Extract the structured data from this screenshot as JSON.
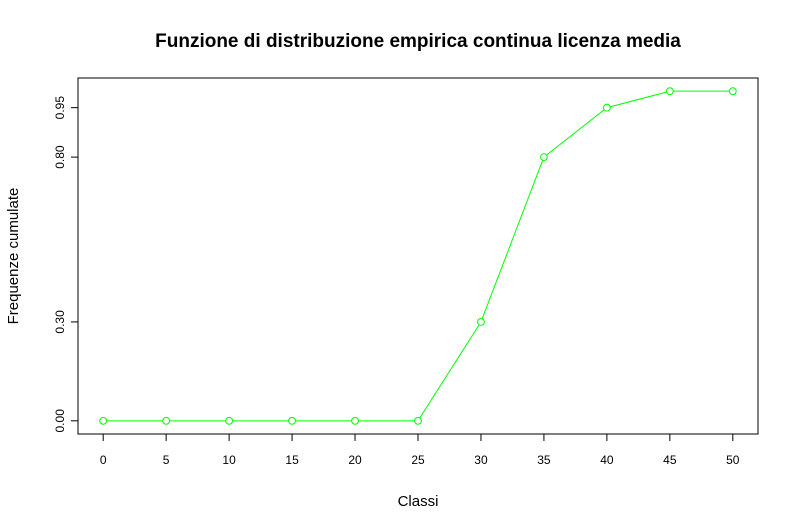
{
  "chart_data": {
    "type": "line",
    "title": "Funzione di distribuzione empirica continua licenza media",
    "xlabel": "Classi",
    "ylabel": "Frequenze cumulate",
    "x": [
      0,
      5,
      10,
      15,
      20,
      25,
      30,
      35,
      40,
      45,
      50
    ],
    "y": [
      0.0,
      0.0,
      0.0,
      0.0,
      0.0,
      0.0,
      0.3,
      0.8,
      0.95,
      1.0,
      1.0
    ],
    "xticks": [
      "0",
      "5",
      "10",
      "15",
      "20",
      "25",
      "30",
      "35",
      "40",
      "45",
      "50"
    ],
    "yticks": [
      {
        "value": 0.0,
        "label": "0.00"
      },
      {
        "value": 0.3,
        "label": "0.30"
      },
      {
        "value": 0.8,
        "label": "0.80"
      },
      {
        "value": 0.95,
        "label": "0.95"
      }
    ],
    "xlim": [
      -2,
      52
    ],
    "ylim": [
      -0.04,
      1.04
    ],
    "line_color": "#00ff00",
    "marker": "open-circle",
    "grid": false,
    "legend": "none"
  }
}
